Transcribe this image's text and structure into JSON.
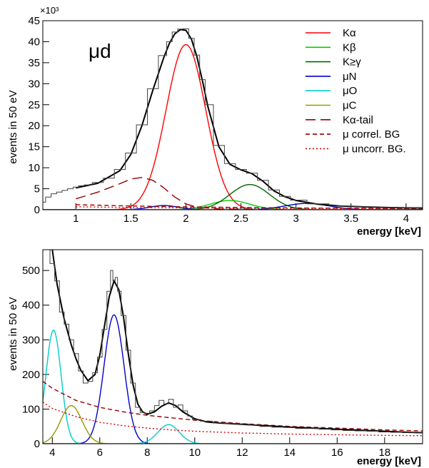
{
  "chart_data": [
    {
      "type": "line",
      "panel_label": "μd",
      "ylabel": "events in 50 eV",
      "xlabel": "energy [keV]",
      "y_multiplier": "×10³",
      "xlim": [
        0.7,
        4.15
      ],
      "ylim": [
        0,
        45000
      ],
      "x_ticks": [
        "1",
        "1.5",
        "2",
        "2.5",
        "3",
        "3.5",
        "4"
      ],
      "y_ticks": [
        "0",
        "5",
        "10",
        "15",
        "20",
        "25",
        "30",
        "35",
        "40",
        "45"
      ],
      "legend_position": "top-right",
      "legend": [
        {
          "label": "Kα",
          "color": "#ff0000",
          "style": "solid"
        },
        {
          "label": "Kβ",
          "color": "#00cc00",
          "style": "solid"
        },
        {
          "label": "K≥γ",
          "color": "#006600",
          "style": "solid"
        },
        {
          "label": "μN",
          "color": "#0000cc",
          "style": "solid"
        },
        {
          "label": "μO",
          "color": "#00cccc",
          "style": "solid"
        },
        {
          "label": "μC",
          "color": "#999900",
          "style": "solid"
        },
        {
          "label": "Kα-tail",
          "color": "#990000",
          "style": "longdash"
        },
        {
          "label": "μ correl. BG",
          "color": "#990000",
          "style": "dashed"
        },
        {
          "label": "μ uncorr. BG.",
          "color": "#dd0000",
          "style": "dotted"
        }
      ],
      "series": [
        {
          "name": "Kα",
          "peaks": [
            {
              "center": 2.0,
              "amp": 39300,
              "sigma": 0.18
            }
          ]
        },
        {
          "name": "Kβ",
          "peaks": [
            {
              "center": 2.4,
              "amp": 2200,
              "sigma": 0.18
            }
          ]
        },
        {
          "name": "K≥γ",
          "peaks": [
            {
              "center": 2.58,
              "amp": 6000,
              "sigma": 0.18
            }
          ]
        },
        {
          "name": "μN",
          "peaks": [
            {
              "center": 1.8,
              "amp": 1000,
              "sigma": 0.13
            },
            {
              "center": 3.1,
              "amp": 1500,
              "sigma": 0.2
            }
          ]
        },
        {
          "name": "μO",
          "peaks": [
            {
              "center": 2.5,
              "amp": 150,
              "sigma": 0.2
            }
          ]
        },
        {
          "name": "μC",
          "peaks": []
        },
        {
          "name": "Kα-tail",
          "x": [
            1.0,
            1.2,
            1.4,
            1.5,
            1.6,
            1.7,
            1.8,
            1.9,
            2.0,
            2.1,
            2.3,
            2.6,
            3.0
          ],
          "y": [
            2600,
            4200,
            6200,
            7300,
            7700,
            7000,
            5200,
            3000,
            1400,
            600,
            200,
            60,
            0
          ]
        },
        {
          "name": "μ correl. BG",
          "x": [
            1.0,
            1.5,
            2.0,
            2.5,
            3.0,
            3.5,
            4.0,
            4.15
          ],
          "y": [
            1200,
            900,
            700,
            550,
            430,
            350,
            300,
            280
          ]
        },
        {
          "name": "μ uncorr. BG.",
          "x": [
            1.0,
            1.5,
            2.0,
            2.5,
            3.0,
            3.5,
            4.0,
            4.15
          ],
          "y": [
            700,
            550,
            450,
            380,
            330,
            290,
            260,
            250
          ]
        },
        {
          "name": "total fit",
          "x": [
            1.0,
            1.2,
            1.4,
            1.5,
            1.6,
            1.7,
            1.8,
            1.85,
            1.9,
            1.95,
            2.0,
            2.05,
            2.1,
            2.15,
            2.2,
            2.3,
            2.4,
            2.5,
            2.6,
            2.7,
            2.8,
            2.9,
            3.0,
            3.2,
            3.4,
            3.6,
            3.8,
            4.0,
            4.15
          ],
          "y": [
            5200,
            6300,
            9300,
            13200,
            20000,
            28500,
            36300,
            39600,
            41900,
            42900,
            42700,
            40600,
            36400,
            30700,
            24500,
            15000,
            10800,
            9500,
            8600,
            6800,
            4500,
            3100,
            2200,
            1300,
            900,
            700,
            550,
            450,
            420
          ]
        },
        {
          "name": "data",
          "x": [
            0.7,
            0.75,
            0.8,
            0.85,
            0.9,
            0.95,
            1.0,
            1.05,
            1.1,
            1.2,
            1.3,
            1.4,
            1.5,
            1.6,
            1.7,
            1.8,
            1.85,
            1.9,
            1.95,
            2.0,
            2.05,
            2.1,
            2.15,
            2.2,
            2.3,
            2.4,
            2.5,
            2.6,
            2.7,
            2.8,
            2.9,
            3.0,
            3.2,
            3.4,
            3.6,
            3.8,
            4.0,
            4.15
          ],
          "y": [
            1800,
            3000,
            3800,
            4200,
            4600,
            5000,
            5400,
            5700,
            5900,
            6500,
            7500,
            9600,
            13500,
            20200,
            28800,
            36700,
            40000,
            42300,
            43000,
            43100,
            40800,
            36800,
            31000,
            25000,
            15300,
            11000,
            9600,
            8700,
            7000,
            4700,
            3200,
            2300,
            1400,
            900,
            700,
            550,
            450,
            420
          ]
        }
      ]
    },
    {
      "type": "line",
      "ylabel": "events in 50 eV",
      "xlabel": "energy [keV]",
      "xlim": [
        3.6,
        19.6
      ],
      "ylim": [
        0,
        560
      ],
      "x_ticks": [
        "4",
        "6",
        "8",
        "10",
        "12",
        "14",
        "16",
        "18"
      ],
      "y_ticks": [
        "0",
        "100",
        "200",
        "300",
        "400",
        "500"
      ],
      "series": [
        {
          "name": "μN",
          "peaks": [
            {
              "center": 6.6,
              "amp": 372,
              "sigma": 0.42
            }
          ]
        },
        {
          "name": "μO",
          "peaks": [
            {
              "center": 4.05,
              "amp": 328,
              "sigma": 0.32
            },
            {
              "center": 8.9,
              "amp": 55,
              "sigma": 0.45
            }
          ]
        },
        {
          "name": "μC",
          "peaks": [
            {
              "center": 4.8,
              "amp": 110,
              "sigma": 0.45
            }
          ]
        },
        {
          "name": "μ correl. BG",
          "x": [
            3.6,
            4,
            5,
            6,
            7,
            8,
            9,
            10,
            12,
            14,
            16,
            18,
            19.6
          ],
          "y": [
            180,
            160,
            125,
            105,
            92,
            82,
            75,
            68,
            58,
            50,
            45,
            40,
            37
          ]
        },
        {
          "name": "μ uncorr. BG.",
          "x": [
            3.6,
            4,
            5,
            6,
            7,
            8,
            9,
            10,
            12,
            14,
            16,
            18,
            19.6
          ],
          "y": [
            120,
            102,
            78,
            62,
            52,
            45,
            40,
            36,
            31,
            28,
            26,
            24,
            23
          ]
        },
        {
          "name": "total fit",
          "x": [
            4.0,
            4.2,
            4.5,
            4.8,
            5.0,
            5.2,
            5.5,
            5.8,
            6.0,
            6.2,
            6.4,
            6.6,
            6.8,
            7.0,
            7.2,
            7.4,
            7.6,
            7.8,
            8.0,
            8.3,
            8.6,
            8.9,
            9.2,
            9.5,
            10.0,
            10.5,
            11,
            12,
            13,
            14,
            15,
            16,
            17,
            18,
            19,
            19.6
          ],
          "y": [
            560,
            460,
            360,
            285,
            245,
            212,
            182,
            200,
            255,
            340,
            425,
            470,
            445,
            365,
            260,
            170,
            115,
            92,
            85,
            92,
            108,
            118,
            110,
            92,
            72,
            63,
            60,
            56,
            52,
            48,
            45,
            42,
            39,
            36,
            33,
            32
          ]
        },
        {
          "name": "data",
          "x": [
            3.6,
            3.8,
            4.0,
            4.2,
            4.4,
            4.6,
            4.8,
            5.0,
            5.2,
            5.4,
            5.6,
            5.8,
            6.0,
            6.2,
            6.4,
            6.5,
            6.6,
            6.7,
            6.8,
            7.0,
            7.2,
            7.4,
            7.6,
            7.8,
            8.0,
            8.2,
            8.4,
            8.6,
            8.8,
            9.0,
            9.2,
            9.4,
            9.6,
            9.8,
            10.0,
            10.5,
            11,
            11.5,
            12,
            12.5,
            13,
            13.5,
            14,
            14.5,
            15,
            15.5,
            16,
            16.5,
            17,
            17.5,
            18,
            18.5,
            19,
            19.6
          ],
          "y": [
            560,
            560,
            520,
            470,
            380,
            345,
            300,
            260,
            210,
            175,
            180,
            205,
            250,
            330,
            440,
            500,
            470,
            480,
            440,
            370,
            270,
            175,
            105,
            90,
            88,
            95,
            110,
            125,
            115,
            128,
            105,
            112,
            95,
            80,
            70,
            65,
            60,
            58,
            57,
            54,
            50,
            48,
            47,
            44,
            44,
            42,
            40,
            38,
            37,
            36,
            34,
            33,
            32,
            31
          ]
        }
      ]
    }
  ]
}
